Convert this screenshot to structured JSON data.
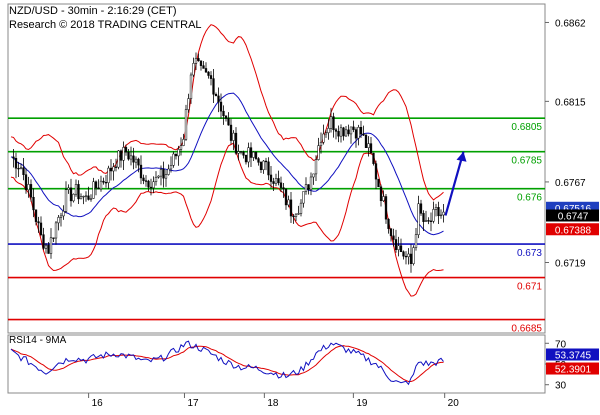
{
  "header": {
    "line1": "NZD/USD - 30min - 2:16:29 (CET)",
    "line2": "Research © 2018 TRADING CENTRAL"
  },
  "chart_data": [
    {
      "type": "candlestick",
      "title": "NZD/USD - 30min",
      "x_tick_labels": [
        "16",
        "17",
        "18",
        "19",
        "20"
      ],
      "y_tick_labels": [
        "0.6862",
        "0.6815",
        "0.6767",
        "0.6719"
      ],
      "ylim": [
        0.6677,
        0.6873
      ],
      "grid": false,
      "price_path": [
        [
          0,
          0.6782
        ],
        [
          4,
          0.6776
        ],
        [
          8,
          0.6757
        ],
        [
          12,
          0.6734
        ],
        [
          15,
          0.6727
        ],
        [
          18,
          0.6742
        ],
        [
          22,
          0.6758
        ],
        [
          26,
          0.6761
        ],
        [
          30,
          0.6757
        ],
        [
          34,
          0.6764
        ],
        [
          38,
          0.677
        ],
        [
          42,
          0.678
        ],
        [
          46,
          0.6785
        ],
        [
          50,
          0.6778
        ],
        [
          54,
          0.6768
        ],
        [
          58,
          0.6768
        ],
        [
          62,
          0.6772
        ],
        [
          66,
          0.6783
        ],
        [
          69,
          0.6795
        ],
        [
          72,
          0.6833
        ],
        [
          74,
          0.6837
        ],
        [
          76,
          0.6832
        ],
        [
          80,
          0.6828
        ],
        [
          84,
          0.6812
        ],
        [
          88,
          0.6794
        ],
        [
          92,
          0.6784
        ],
        [
          96,
          0.6782
        ],
        [
          100,
          0.6778
        ],
        [
          104,
          0.6772
        ],
        [
          108,
          0.6762
        ],
        [
          112,
          0.675
        ],
        [
          116,
          0.6754
        ],
        [
          120,
          0.677
        ],
        [
          124,
          0.6795
        ],
        [
          128,
          0.6803
        ],
        [
          132,
          0.6798
        ],
        [
          136,
          0.68
        ],
        [
          140,
          0.6796
        ],
        [
          144,
          0.6782
        ],
        [
          148,
          0.676
        ],
        [
          152,
          0.6738
        ],
        [
          155,
          0.6728
        ],
        [
          158,
          0.6722
        ],
        [
          160,
          0.6718
        ],
        [
          163,
          0.675
        ],
        [
          166,
          0.674
        ],
        [
          170,
          0.6748
        ],
        [
          173,
          0.6747
        ]
      ],
      "support_resistance": [
        {
          "label": "0.6805",
          "value": 0.6805,
          "color": "#00a000",
          "style": "solid"
        },
        {
          "label": "0.6785",
          "value": 0.6785,
          "color": "#00a000",
          "style": "solid"
        },
        {
          "label": "0.676",
          "value": 0.6763,
          "color": "#00a000",
          "style": "solid"
        },
        {
          "label": "0.673",
          "value": 0.673,
          "color": "#1010c0",
          "style": "solid"
        },
        {
          "label": "0.671",
          "value": 0.671,
          "color": "#e00000",
          "style": "solid"
        },
        {
          "label": "0.6685",
          "value": 0.6685,
          "color": "#e00000",
          "style": "solid"
        }
      ],
      "price_tags": [
        {
          "label": "0.67516",
          "value": 0.67516,
          "bg": "#1f3fbf",
          "fg": "#ffffff"
        },
        {
          "label": "0.6747",
          "value": 0.6747,
          "bg": "#000000",
          "fg": "#ffffff"
        },
        {
          "label": "0.67388",
          "value": 0.67388,
          "bg": "#e00000",
          "fg": "#ffffff"
        }
      ],
      "forecast_arrow": {
        "from": 0.6747,
        "to": 0.6785,
        "color": "#1010c0"
      },
      "colors": {
        "candles": "#000000",
        "bollinger": "#e00000",
        "moving_average": "#1010c0"
      }
    },
    {
      "type": "line",
      "title": "RSI14 - 9MA",
      "y_tick_labels": [
        "70",
        "50",
        "30"
      ],
      "ylim": [
        22,
        78
      ],
      "rsi_path": [
        [
          0,
          62
        ],
        [
          5,
          55
        ],
        [
          10,
          48
        ],
        [
          14,
          42
        ],
        [
          18,
          50
        ],
        [
          24,
          56
        ],
        [
          30,
          54
        ],
        [
          36,
          58
        ],
        [
          42,
          60
        ],
        [
          48,
          57
        ],
        [
          54,
          52
        ],
        [
          60,
          55
        ],
        [
          66,
          63
        ],
        [
          70,
          70
        ],
        [
          75,
          66
        ],
        [
          80,
          60
        ],
        [
          86,
          52
        ],
        [
          92,
          47
        ],
        [
          98,
          46
        ],
        [
          104,
          42
        ],
        [
          110,
          38
        ],
        [
          116,
          44
        ],
        [
          122,
          60
        ],
        [
          128,
          70
        ],
        [
          134,
          64
        ],
        [
          140,
          58
        ],
        [
          146,
          50
        ],
        [
          152,
          36
        ],
        [
          156,
          30
        ],
        [
          160,
          34
        ],
        [
          163,
          52
        ],
        [
          167,
          50
        ],
        [
          173,
          53
        ]
      ],
      "series": [
        {
          "value_label": "53.3745",
          "value": 53.3745,
          "color": "#1010c0"
        },
        {
          "value_label": "52.3901",
          "value": 52.3901,
          "color": "#e00000"
        }
      ]
    }
  ]
}
